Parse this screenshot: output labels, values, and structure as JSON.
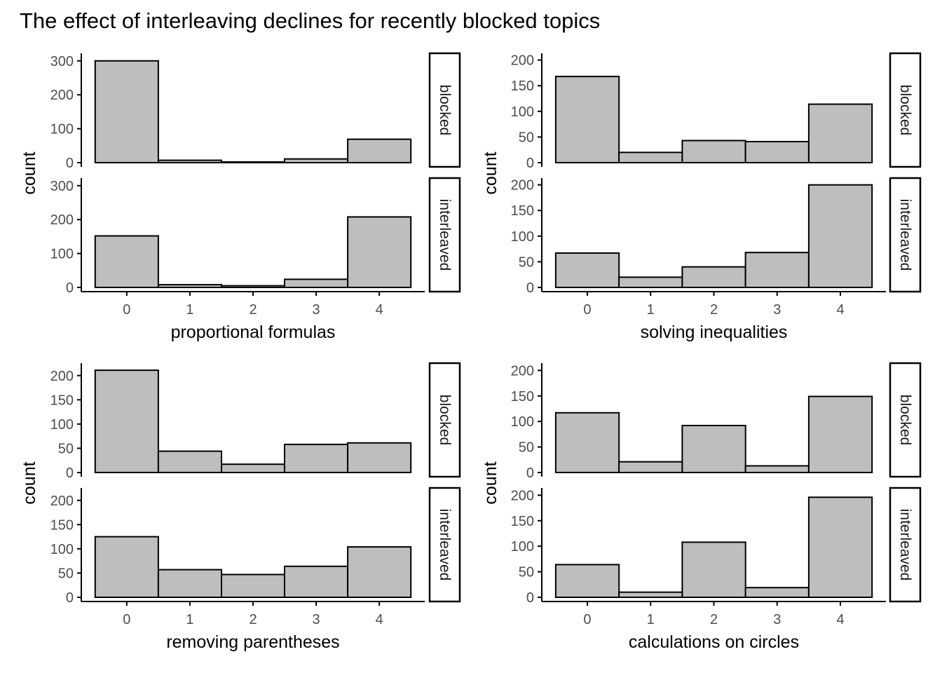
{
  "title": "The effect of interleaving declines for recently blocked topics",
  "colors": {
    "bar_fill": "#bebebe",
    "bar_stroke": "#000000",
    "axis": "#000000",
    "tick_text": "#4d4d4d",
    "strip_fill": "#ffffff"
  },
  "chart_data": [
    {
      "type": "bar",
      "xlabel": "proportional formulas",
      "ylabel": "count",
      "categories": [
        "0",
        "1",
        "2",
        "3",
        "4"
      ],
      "facets": [
        {
          "label": "blocked",
          "values": [
            300,
            7,
            1,
            11,
            69
          ],
          "ylim": [
            0,
            310
          ],
          "yticks": [
            0,
            100,
            200,
            300
          ]
        },
        {
          "label": "interleaved",
          "values": [
            152,
            8,
            5,
            24,
            208
          ],
          "ylim": [
            0,
            310
          ],
          "yticks": [
            0,
            100,
            200,
            300
          ]
        }
      ]
    },
    {
      "type": "bar",
      "xlabel": "solving inequalities",
      "ylabel": "count",
      "categories": [
        "0",
        "1",
        "2",
        "3",
        "4"
      ],
      "facets": [
        {
          "label": "blocked",
          "values": [
            168,
            20,
            43,
            41,
            114
          ],
          "ylim": [
            0,
            205
          ],
          "yticks": [
            0,
            50,
            100,
            150,
            200
          ]
        },
        {
          "label": "interleaved",
          "values": [
            67,
            20,
            40,
            68,
            200
          ],
          "ylim": [
            0,
            205
          ],
          "yticks": [
            0,
            50,
            100,
            150,
            200
          ]
        }
      ]
    },
    {
      "type": "bar",
      "xlabel": "removing parentheses",
      "ylabel": "count",
      "categories": [
        "0",
        "1",
        "2",
        "3",
        "4"
      ],
      "facets": [
        {
          "label": "blocked",
          "values": [
            211,
            44,
            17,
            58,
            61
          ],
          "ylim": [
            0,
            217
          ],
          "yticks": [
            0,
            50,
            100,
            150,
            200
          ]
        },
        {
          "label": "interleaved",
          "values": [
            125,
            57,
            47,
            64,
            104
          ],
          "ylim": [
            0,
            217
          ],
          "yticks": [
            0,
            50,
            100,
            150,
            200
          ]
        }
      ]
    },
    {
      "type": "bar",
      "xlabel": "calculations on circles",
      "ylabel": "count",
      "categories": [
        "0",
        "1",
        "2",
        "3",
        "4"
      ],
      "facets": [
        {
          "label": "blocked",
          "values": [
            117,
            21,
            92,
            13,
            149
          ],
          "ylim": [
            0,
            206
          ],
          "yticks": [
            0,
            50,
            100,
            150,
            200
          ]
        },
        {
          "label": "interleaved",
          "values": [
            64,
            10,
            108,
            19,
            196
          ],
          "ylim": [
            0,
            206
          ],
          "yticks": [
            0,
            50,
            100,
            150,
            200
          ]
        }
      ]
    }
  ]
}
